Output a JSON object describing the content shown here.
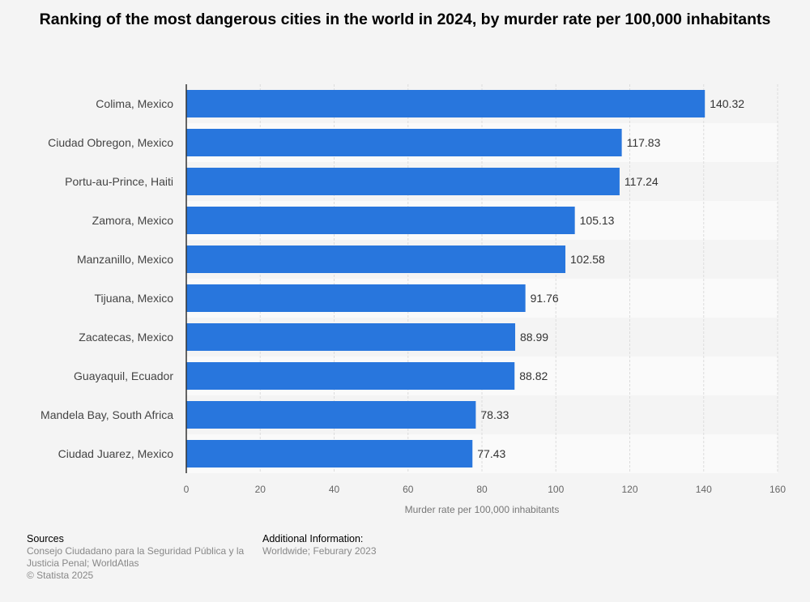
{
  "chart_data": {
    "type": "bar",
    "orientation": "horizontal",
    "title": "Ranking of the most dangerous cities in the world in 2024, by murder rate per 100,000 inhabitants",
    "xlabel": "Murder rate per 100,000 inhabitants",
    "ylabel": "",
    "categories": [
      "Colima, Mexico",
      "Ciudad Obregon, Mexico",
      "Portu-au-Prince, Haiti",
      "Zamora, Mexico",
      "Manzanillo, Mexico",
      "Tijuana, Mexico",
      "Zacatecas, Mexico",
      "Guayaquil, Ecuador",
      "Mandela Bay, South Africa",
      "Ciudad Juarez, Mexico"
    ],
    "values": [
      140.32,
      117.83,
      117.24,
      105.13,
      102.58,
      91.76,
      88.99,
      88.82,
      78.33,
      77.43
    ],
    "value_labels": [
      "140.32",
      "117.83",
      "117.24",
      "105.13",
      "102.58",
      "91.76",
      "88.99",
      "88.82",
      "78.33",
      "77.43"
    ],
    "xlim": [
      0,
      160
    ],
    "xticks": [
      "0",
      "20",
      "40",
      "60",
      "80",
      "100",
      "120",
      "140",
      "160"
    ],
    "grid": true,
    "bar_color": "#2876dd"
  },
  "footer": {
    "sources_heading": "Sources",
    "sources_text": "Consejo Ciudadano para la Seguridad Pública y la Justicia Penal; WorldAtlas",
    "copyright": "© Statista 2025",
    "additional_heading": "Additional Information:",
    "additional_text": "Worldwide; Feburary 2023"
  }
}
